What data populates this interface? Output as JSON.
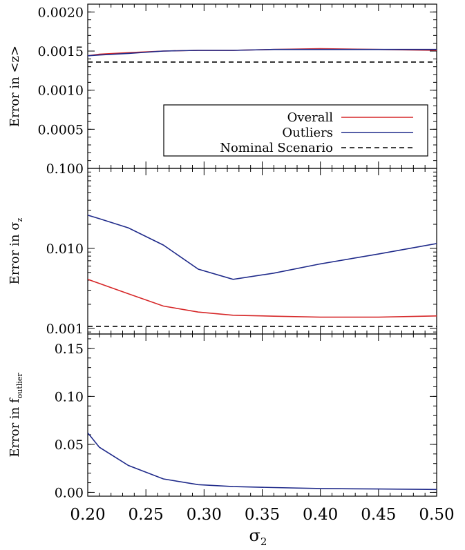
{
  "chart_data": [
    {
      "type": "line",
      "ylabel_main": "Error in <z>",
      "ylabel_sub": "",
      "yscale": "linear",
      "ylim": [
        0.0,
        0.0021
      ],
      "yticks": [
        0.0005,
        0.001,
        0.0015,
        0.002
      ],
      "ytick_labels": [
        "0.0005",
        "0.0010",
        "0.0015",
        "0.0020"
      ],
      "xlim": [
        0.2,
        0.5
      ],
      "series": [
        {
          "name": "Overall",
          "color": "#d62728",
          "dash": "",
          "x": [
            0.2,
            0.21,
            0.235,
            0.265,
            0.295,
            0.325,
            0.36,
            0.4,
            0.45,
            0.5
          ],
          "y": [
            0.00144,
            0.00146,
            0.00148,
            0.0015,
            0.00151,
            0.00151,
            0.00152,
            0.00153,
            0.00152,
            0.00151
          ]
        },
        {
          "name": "Outliers",
          "color": "#1f2a8a",
          "dash": "",
          "x": [
            0.2,
            0.21,
            0.235,
            0.265,
            0.295,
            0.325,
            0.36,
            0.4,
            0.45,
            0.5
          ],
          "y": [
            0.00144,
            0.00145,
            0.00147,
            0.0015,
            0.00151,
            0.00151,
            0.00152,
            0.00152,
            0.00152,
            0.00152
          ]
        },
        {
          "name": "Nominal Scenario",
          "color": "#000000",
          "dash": "7,5",
          "x": [
            0.2,
            0.5
          ],
          "y": [
            0.00136,
            0.00136
          ]
        }
      ],
      "legend": {
        "placement": "lower-right",
        "entries": [
          {
            "label": "Overall",
            "color": "#d62728",
            "dash": ""
          },
          {
            "label": "Outliers",
            "color": "#1f2a8a",
            "dash": ""
          },
          {
            "label": "Nominal Scenario",
            "color": "#000000",
            "dash": "7,5"
          }
        ]
      }
    },
    {
      "type": "line",
      "ylabel_main": "Error in σ",
      "ylabel_sub": "z",
      "yscale": "log",
      "ylim": [
        0.00085,
        0.1
      ],
      "yticks": [
        0.001,
        0.01,
        0.1
      ],
      "ytick_labels": [
        "0.001",
        "0.010",
        "0.100"
      ],
      "xlim": [
        0.2,
        0.5
      ],
      "series": [
        {
          "name": "Overall",
          "color": "#d62728",
          "dash": "",
          "x": [
            0.2,
            0.235,
            0.265,
            0.295,
            0.325,
            0.36,
            0.4,
            0.45,
            0.5
          ],
          "y": [
            0.0041,
            0.0027,
            0.0019,
            0.0016,
            0.00146,
            0.00142,
            0.00138,
            0.00138,
            0.00143
          ]
        },
        {
          "name": "Outliers",
          "color": "#1f2a8a",
          "dash": "",
          "x": [
            0.2,
            0.21,
            0.235,
            0.265,
            0.295,
            0.325,
            0.36,
            0.4,
            0.45,
            0.5
          ],
          "y": [
            0.026,
            0.0235,
            0.018,
            0.011,
            0.0055,
            0.0041,
            0.0049,
            0.0064,
            0.0085,
            0.0115
          ]
        },
        {
          "name": "Nominal Scenario",
          "color": "#000000",
          "dash": "7,5",
          "x": [
            0.2,
            0.5
          ],
          "y": [
            0.00106,
            0.00106
          ]
        }
      ]
    },
    {
      "type": "line",
      "ylabel_main": "Error in f",
      "ylabel_sub": "outlier",
      "yscale": "linear",
      "ylim": [
        -0.004,
        0.165
      ],
      "yticks": [
        0.0,
        0.05,
        0.1,
        0.15
      ],
      "ytick_labels": [
        "0.00",
        "0.05",
        "0.10",
        "0.15"
      ],
      "xlim": [
        0.2,
        0.5
      ],
      "series": [
        {
          "name": "Outliers",
          "color": "#1f2a8a",
          "dash": "",
          "x": [
            0.2,
            0.21,
            0.235,
            0.265,
            0.295,
            0.325,
            0.36,
            0.4,
            0.45,
            0.5
          ],
          "y": [
            0.062,
            0.047,
            0.028,
            0.014,
            0.008,
            0.006,
            0.005,
            0.004,
            0.0035,
            0.003
          ]
        }
      ]
    }
  ],
  "x_axis": {
    "label_main": "σ",
    "label_sub": "2",
    "ticks": [
      0.2,
      0.25,
      0.3,
      0.35,
      0.4,
      0.45,
      0.5
    ],
    "tick_labels": [
      "0.20",
      "0.25",
      "0.30",
      "0.35",
      "0.40",
      "0.45",
      "0.50"
    ]
  }
}
